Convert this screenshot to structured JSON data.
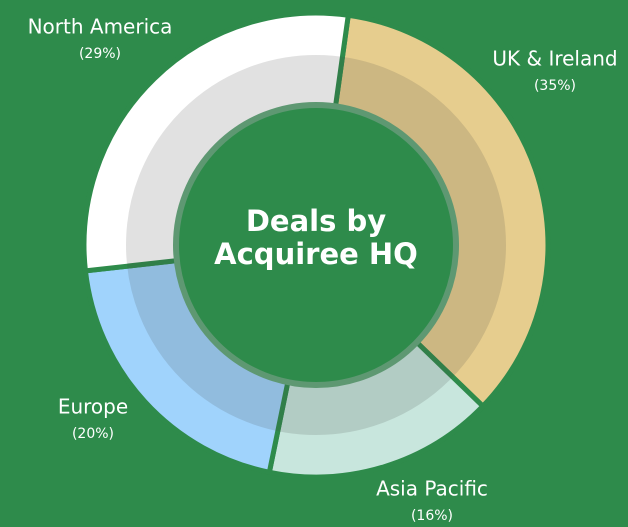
{
  "chart_data": {
    "type": "donut",
    "title": "Deals by Acquiree HQ",
    "categories": [
      "UK & Ireland",
      "Asia Pacific",
      "Europe",
      "North America"
    ],
    "values": [
      35,
      16,
      20,
      29
    ],
    "value_labels": [
      "(35%)",
      "(16%)",
      "(20%)",
      "(29%)"
    ],
    "colors": [
      "#e6cd8e",
      "#c8e6dd",
      "#a0d3fc",
      "#ffffff"
    ]
  }
}
